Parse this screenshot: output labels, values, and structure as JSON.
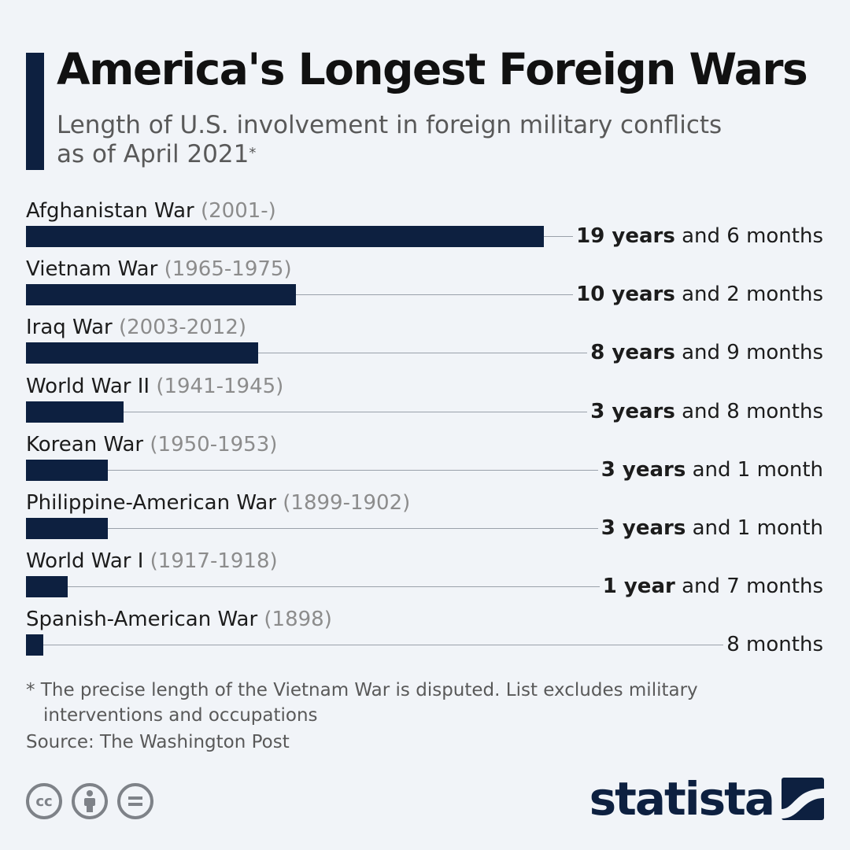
{
  "header": {
    "title": "America's Longest Foreign Wars",
    "subtitle": "Length of U.S. involvement in foreign military conflicts as of April 2021",
    "subtitle_mark": "*"
  },
  "chart_data": {
    "type": "bar",
    "orientation": "horizontal",
    "title": "America's Longest Foreign Wars",
    "unit": "months",
    "xlim": [
      0,
      234
    ],
    "categories": [
      "Afghanistan War",
      "Vietnam War",
      "Iraq War",
      "World War II",
      "Korean War",
      "Philippine-American War",
      "World War I",
      "Spanish-American War"
    ],
    "periods": [
      "(2001-)",
      "(1965-1975)",
      "(2003-2012)",
      "(1941-1945)",
      "(1950-1953)",
      "(1899-1902)",
      "(1917-1918)",
      "(1898)"
    ],
    "values": [
      234,
      122,
      105,
      44,
      37,
      37,
      19,
      8
    ],
    "value_labels": [
      {
        "strong": "19 years",
        "rest": " and 6 months"
      },
      {
        "strong": "10 years",
        "rest": " and 2 months"
      },
      {
        "strong": "8 years",
        "rest": " and 9 months"
      },
      {
        "strong": "3 years",
        "rest": " and 8 months"
      },
      {
        "strong": "3 years",
        "rest": " and 1 month"
      },
      {
        "strong": "3 years",
        "rest": " and 1 month"
      },
      {
        "strong": "1 year",
        "rest": " and 7 months"
      },
      {
        "strong": "",
        "rest": "8 months"
      }
    ]
  },
  "footer": {
    "footnote": "* The precise length of the Vietnam War is disputed. List excludes military interventions and occupations",
    "source": "Source: The Washington Post",
    "license_icons": [
      "cc-icon",
      "attribution-icon",
      "no-derivatives-icon"
    ],
    "license_glyphs": [
      "cc",
      "i",
      "="
    ],
    "brand": "statista"
  },
  "colors": {
    "bar": "#0d2040",
    "background": "#f1f4f8",
    "period_text": "#8c8c8c",
    "leader_line": "#9aa1aa"
  }
}
